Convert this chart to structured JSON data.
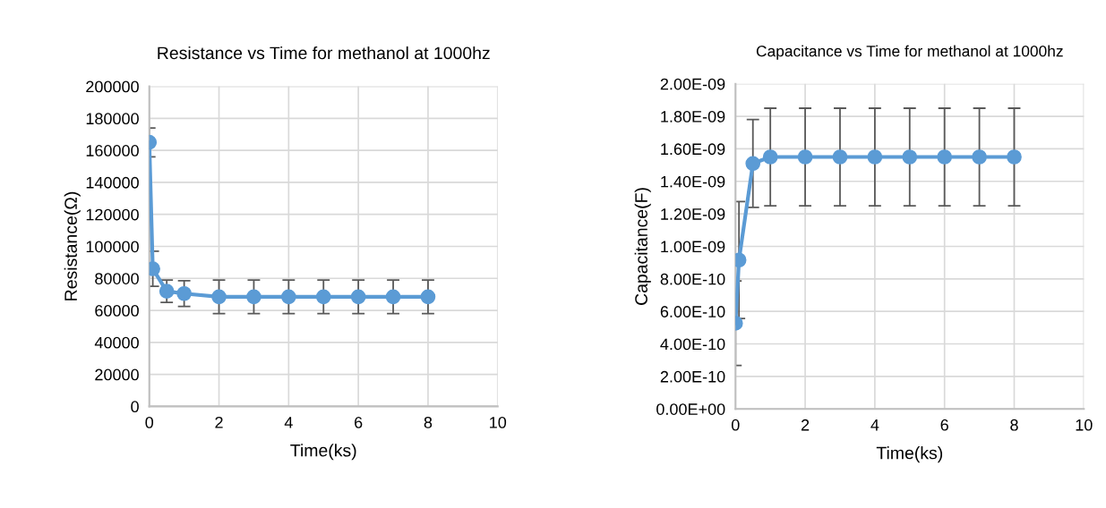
{
  "chart_data": [
    {
      "type": "line",
      "title": "Resistance vs Time for methanol at 1000hz",
      "xlabel": "Time(ks)",
      "ylabel": "Resistance(Ω)",
      "x": [
        0,
        0.1,
        0.5,
        1,
        2,
        3,
        4,
        5,
        6,
        7,
        8
      ],
      "series": [
        {
          "color": "#5b9bd5",
          "values": [
            165000,
            86000,
            72000,
            70500,
            68500,
            68500,
            68500,
            68500,
            68500,
            68500,
            68500
          ],
          "errors": [
            9000,
            11000,
            7000,
            8000,
            10500,
            10500,
            10500,
            10500,
            10500,
            10500,
            10500
          ]
        }
      ],
      "xlim": [
        0,
        10
      ],
      "xticks": [
        0,
        2,
        4,
        6,
        8,
        10
      ],
      "ylim": [
        0,
        200000
      ],
      "yticks": [
        0,
        20000,
        40000,
        60000,
        80000,
        100000,
        120000,
        140000,
        160000,
        180000,
        200000
      ],
      "grid": true,
      "marker": "circle",
      "line_style": "solid"
    },
    {
      "type": "line",
      "title": "Capacitance vs Time for methanol at 1000hz",
      "xlabel": "Time(ks)",
      "ylabel": "Capacitance(F)",
      "x": [
        0,
        0.1,
        0.5,
        1,
        2,
        3,
        4,
        5,
        6,
        7,
        8
      ],
      "series": [
        {
          "color": "#5b9bd5",
          "values": [
            5.27e-10,
            9.16e-10,
            1.51e-09,
            1.55e-09,
            1.55e-09,
            1.55e-09,
            1.55e-09,
            1.55e-09,
            1.55e-09,
            1.55e-09,
            1.55e-09
          ],
          "errors": [
            2.6e-10,
            3.6e-10,
            2.7e-10,
            3e-10,
            3e-10,
            3e-10,
            3e-10,
            3e-10,
            3e-10,
            3e-10,
            3e-10
          ]
        }
      ],
      "xlim": [
        0,
        10
      ],
      "xticks": [
        0,
        2,
        4,
        6,
        8,
        10
      ],
      "ylim": [
        0,
        2e-09
      ],
      "yticks": [
        {
          "value": 0,
          "label": "0.00E+00"
        },
        {
          "value": 2e-10,
          "label": "2.00E-10"
        },
        {
          "value": 4e-10,
          "label": "4.00E-10"
        },
        {
          "value": 6e-10,
          "label": "6.00E-10"
        },
        {
          "value": 8e-10,
          "label": "8.00E-10"
        },
        {
          "value": 1e-09,
          "label": "1.00E-09"
        },
        {
          "value": 1.2e-09,
          "label": "1.20E-09"
        },
        {
          "value": 1.4e-09,
          "label": "1.40E-09"
        },
        {
          "value": 1.6e-09,
          "label": "1.60E-09"
        },
        {
          "value": 1.8e-09,
          "label": "1.80E-09"
        },
        {
          "value": 2e-09,
          "label": "2.00E-09"
        }
      ],
      "grid": true,
      "marker": "circle",
      "line_style": "solid"
    }
  ]
}
